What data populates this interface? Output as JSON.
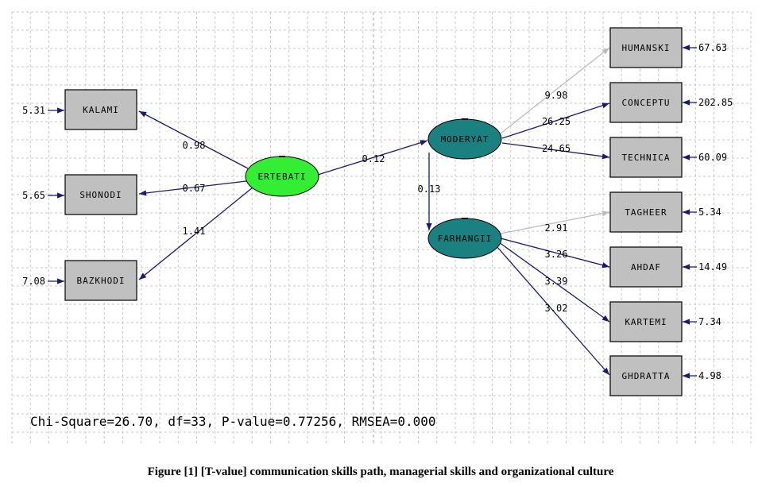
{
  "diagram": {
    "nodes": [
      "KALAMI",
      "SHONODI",
      "BAZKHODI",
      "ERTEBATI",
      "MODERYAT",
      "FARHANGII",
      "HUMANSKI",
      "CONCEPTU",
      "TECHNICA",
      "TAGHEER",
      "AHDAF",
      "KARTEMI",
      "GHDRATTA"
    ],
    "errors": [
      "5.31",
      "5.65",
      "7.08",
      "67.63",
      "202.85",
      "60.09",
      "5.34",
      "14.49",
      "7.34",
      "4.98"
    ],
    "paths": [
      "0.98",
      "0.67",
      "1.41",
      "0.12",
      "0.13",
      "9.98",
      "26.25",
      "24.65",
      "2.91",
      "3.26",
      "3.39",
      "3.02"
    ],
    "fit": "Chi-Square=26.70, df=33, P-value=0.77256, RMSEA=0.000",
    "caption": "Figure [1] [T-value] communication skills path, managerial skills and organizational culture"
  }
}
